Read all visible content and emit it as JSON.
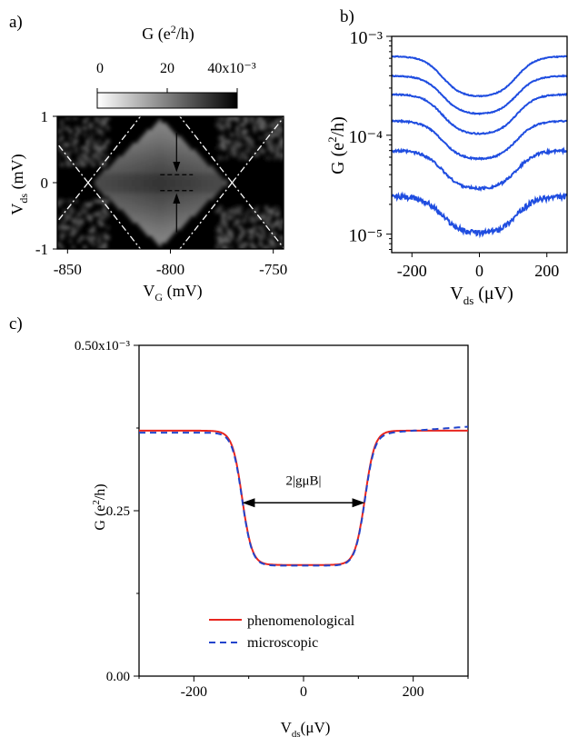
{
  "panel_labels": {
    "a": "a)",
    "b": "b)",
    "c": "c)"
  },
  "colorbar": {
    "title": "G (e²/h)",
    "tick_labels": [
      "0",
      "20",
      "40x10⁻³"
    ]
  },
  "chart_data": [
    {
      "panel": "a",
      "type": "heatmap",
      "xlabel": "VG (mV)",
      "ylabel": "Vds (mV)",
      "xlim": [
        -855,
        -745
      ],
      "ylim": [
        -1,
        1
      ],
      "x_ticks": [
        "-850",
        "-800",
        "-750"
      ],
      "y_ticks": [
        "1",
        "0",
        "-1"
      ],
      "color_range": [
        0,
        0.04
      ],
      "colormap": "black-to-white",
      "diamond_center": -805,
      "diamond_half_width_mV": 33,
      "diamond_half_height_mV": 0.95,
      "plateau_conductance": 0.03,
      "kondo_gap_mV": [
        -0.12,
        0.12
      ]
    },
    {
      "panel": "b",
      "type": "line",
      "xlabel": "Vds (μV)",
      "ylabel": "G (e²/h)",
      "xlim": [
        -260,
        260
      ],
      "ylim_log": [
        6.5e-06,
        0.001
      ],
      "log_scale_y": true,
      "x_ticks": [
        "-200",
        "0",
        "200"
      ],
      "y_ticks": [
        "10⁻³",
        "10⁻⁴",
        "10⁻⁵"
      ],
      "color": "#1f4de0",
      "series": [
        {
          "high": 0.00063,
          "low": 0.00024,
          "noise": 0.01
        },
        {
          "high": 0.0004,
          "low": 0.00016,
          "noise": 0.012
        },
        {
          "high": 0.00026,
          "low": 0.0001,
          "noise": 0.014
        },
        {
          "high": 0.00014,
          "low": 5.6e-05,
          "noise": 0.016
        },
        {
          "high": 7e-05,
          "low": 2.8e-05,
          "noise": 0.03
        },
        {
          "high": 2.4e-05,
          "low": 1e-05,
          "noise": 0.06
        }
      ]
    },
    {
      "panel": "c",
      "type": "line",
      "xlabel": "Vds(μV)",
      "ylabel": "G (e²/h)",
      "xlim": [
        -300,
        300
      ],
      "ylim": [
        0,
        0.0005
      ],
      "x_ticks": [
        "-200",
        "0",
        "200"
      ],
      "y_ticks": [
        "0.50x10⁻³",
        "0.25",
        "0.00"
      ],
      "series": [
        {
          "name": "phenomenological",
          "color": "#e8261f",
          "high": 0.000371,
          "low": 0.000168,
          "edge": 112,
          "width": 9
        },
        {
          "name": "microscopic",
          "color": "#2244cc",
          "high": 0.000368,
          "low": 0.000167,
          "edge": 112,
          "width": 9
        }
      ],
      "annotation": {
        "text": "2|gμB|",
        "from": -112,
        "to": 112,
        "y": 0.000262
      }
    }
  ]
}
